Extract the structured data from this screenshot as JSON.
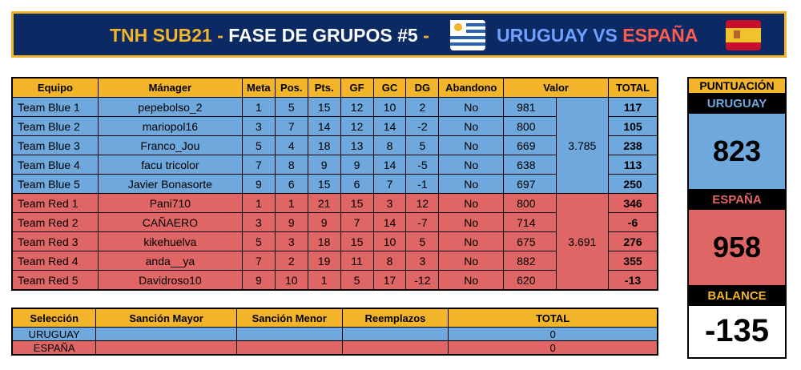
{
  "header": {
    "title_prefix": "TNH SUB21",
    "dash1": " - ",
    "stage": "FASE DE GRUPOS #5",
    "dash2": " -",
    "team_home": "URUGUAY",
    "vs": " VS ",
    "team_away": "ESPAÑA",
    "flag_home_icon": "uruguay-flag-icon",
    "flag_away_icon": "spain-flag-icon"
  },
  "colors": {
    "banner_bg": "#0b2a63",
    "gold": "#f2b42a",
    "blue_team": "#6fa8dc",
    "red_team": "#e06666"
  },
  "main_table": {
    "columns": [
      "Equipo",
      "Mánager",
      "Meta",
      "Pos.",
      "Pts.",
      "GF",
      "GC",
      "DG",
      "Abandono",
      "Valor",
      "TOTAL"
    ],
    "blue_valor_total": "3.785",
    "red_valor_total": "3.691",
    "rows": [
      {
        "equipo": "Team Blue 1",
        "manager": "pepebolso_2",
        "meta": "1",
        "pos": "5",
        "pts": "15",
        "gf": "12",
        "gc": "10",
        "dg": "2",
        "abandono": "No",
        "valor": "981",
        "total": "117"
      },
      {
        "equipo": "Team Blue 2",
        "manager": "mariopol16",
        "meta": "3",
        "pos": "7",
        "pts": "14",
        "gf": "12",
        "gc": "14",
        "dg": "-2",
        "abandono": "No",
        "valor": "800",
        "total": "105"
      },
      {
        "equipo": "Team Blue 3",
        "manager": "Franco_Jou",
        "meta": "5",
        "pos": "4",
        "pts": "18",
        "gf": "13",
        "gc": "8",
        "dg": "5",
        "abandono": "No",
        "valor": "669",
        "total": "238"
      },
      {
        "equipo": "Team Blue 4",
        "manager": "facu tricolor",
        "meta": "7",
        "pos": "8",
        "pts": "9",
        "gf": "9",
        "gc": "14",
        "dg": "-5",
        "abandono": "No",
        "valor": "638",
        "total": "113"
      },
      {
        "equipo": "Team Blue 5",
        "manager": "Javier Bonasorte",
        "meta": "9",
        "pos": "6",
        "pts": "15",
        "gf": "6",
        "gc": "7",
        "dg": "-1",
        "abandono": "No",
        "valor": "697",
        "total": "250"
      },
      {
        "equipo": "Team Red 1",
        "manager": "Pani710",
        "meta": "1",
        "pos": "1",
        "pts": "21",
        "gf": "15",
        "gc": "3",
        "dg": "12",
        "abandono": "No",
        "valor": "800",
        "total": "346"
      },
      {
        "equipo": "Team Red 2",
        "manager": "CAÑAERO",
        "meta": "3",
        "pos": "9",
        "pts": "9",
        "gf": "7",
        "gc": "14",
        "dg": "-7",
        "abandono": "No",
        "valor": "714",
        "total": "-6"
      },
      {
        "equipo": "Team Red 3",
        "manager": "kikehuelva",
        "meta": "5",
        "pos": "3",
        "pts": "18",
        "gf": "15",
        "gc": "10",
        "dg": "5",
        "abandono": "No",
        "valor": "675",
        "total": "276"
      },
      {
        "equipo": "Team Red 4",
        "manager": "anda__ya",
        "meta": "7",
        "pos": "2",
        "pts": "19",
        "gf": "11",
        "gc": "8",
        "dg": "3",
        "abandono": "No",
        "valor": "882",
        "total": "355"
      },
      {
        "equipo": "Team Red 5",
        "manager": "Davidroso10",
        "meta": "9",
        "pos": "10",
        "pts": "1",
        "gf": "5",
        "gc": "17",
        "dg": "-12",
        "abandono": "No",
        "valor": "620",
        "total": "-13"
      }
    ]
  },
  "sanctions_table": {
    "columns": [
      "Selección",
      "Sanción Mayor",
      "Sanción Menor",
      "Reemplazos",
      "TOTAL"
    ],
    "rows": [
      {
        "seleccion": "URUGUAY",
        "mayor": "",
        "menor": "",
        "reemplazos": "",
        "total": "0"
      },
      {
        "seleccion": "ESPAÑA",
        "mayor": "",
        "menor": "",
        "reemplazos": "",
        "total": "0"
      }
    ]
  },
  "score_panel": {
    "heading": "PUNTUACIÓN",
    "home_name": "URUGUAY",
    "home_score": "823",
    "away_name": "ESPAÑA",
    "away_score": "958",
    "balance_label": "BALANCE",
    "balance_value": "-135"
  }
}
